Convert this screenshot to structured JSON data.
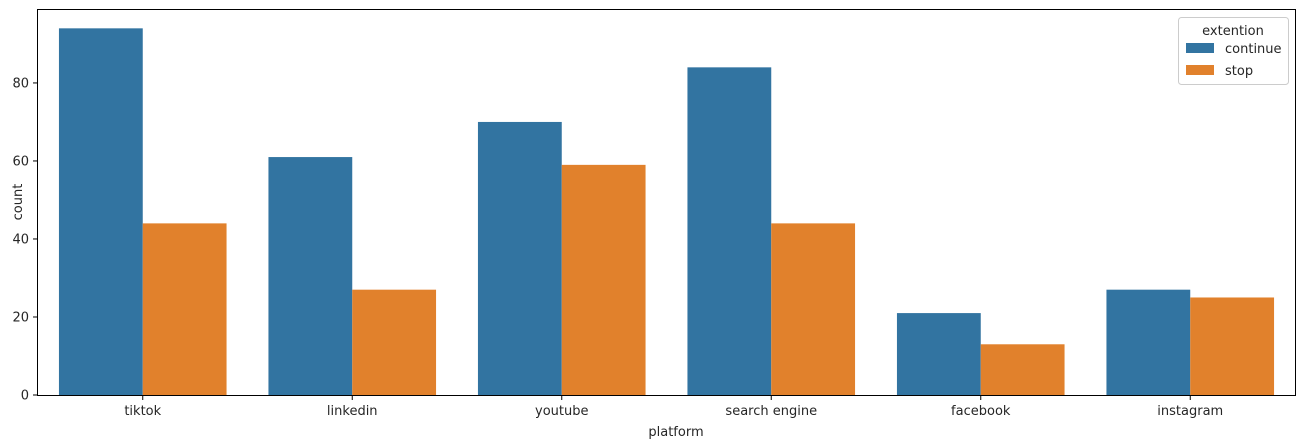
{
  "chart_data": {
    "type": "bar",
    "categories": [
      "tiktok",
      "linkedin",
      "youtube",
      "search engine",
      "facebook",
      "instagram"
    ],
    "series": [
      {
        "name": "continue",
        "values": [
          94,
          61,
          70,
          84,
          21,
          27
        ],
        "color": "#3274a1"
      },
      {
        "name": "stop",
        "values": [
          44,
          27,
          59,
          44,
          13,
          25
        ],
        "color": "#e1812c"
      }
    ],
    "xlabel": "platform",
    "ylabel": "count",
    "ylim": [
      0,
      98.7
    ],
    "yticks": [
      0,
      20,
      40,
      60,
      80
    ],
    "legend": {
      "title": "extention",
      "placement": "top-right"
    },
    "grid": false
  }
}
